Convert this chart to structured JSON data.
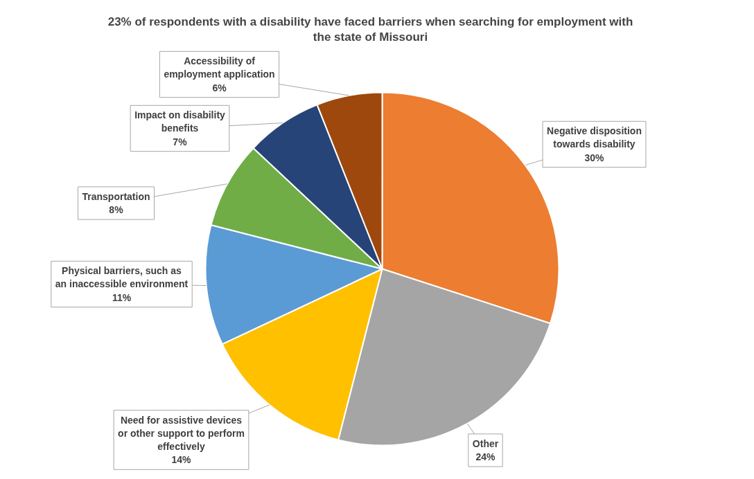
{
  "chart_data": {
    "type": "pie",
    "title": "23% of respondents with a disability have faced barriers when searching for employment with the state of Missouri",
    "categories": [
      "Negative disposition towards disability",
      "Other",
      "Need for assistive devices or other support to perform effectively",
      "Physical barriers, such as an inaccessible environment",
      "Transportation",
      "Impact on disability benefits",
      "Accessibility of employment application"
    ],
    "values": [
      30,
      24,
      14,
      11,
      8,
      7,
      6
    ],
    "colors": [
      "#ed7d31",
      "#a5a5a5",
      "#ffc000",
      "#5b9bd5",
      "#70ad47",
      "#264478",
      "#9e480e"
    ],
    "value_labels": [
      "30%",
      "24%",
      "14%",
      "11%",
      "8%",
      "7%",
      "6%"
    ]
  }
}
